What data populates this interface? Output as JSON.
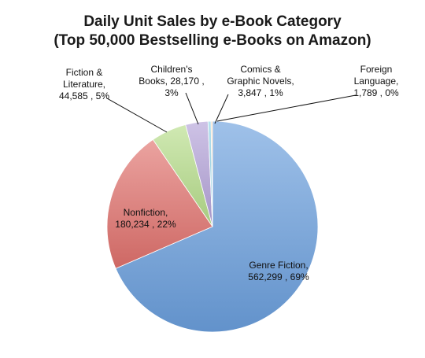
{
  "chart_data": {
    "type": "pie",
    "title": "Daily Unit Sales by e-Book Category",
    "subtitle": "(Top 50,000 Bestselling e-Books on Amazon)",
    "legend": "none",
    "slices": [
      {
        "name": "Genre Fiction",
        "value": 562299,
        "percent": "69%",
        "color": "#6b9fdd",
        "label_lines": [
          "Genre Fiction,",
          "562,299 , 69%"
        ]
      },
      {
        "name": "Nonfiction",
        "value": 180234,
        "percent": "22%",
        "color": "#e0716d",
        "label_lines": [
          "Nonfiction,",
          "180,234 , 22%"
        ]
      },
      {
        "name": "Fiction & Literature",
        "value": 44585,
        "percent": "5%",
        "color": "#b6dd8a",
        "label_lines": [
          "Fiction &",
          "Literature,",
          "44,585 , 5%"
        ]
      },
      {
        "name": "Children's Books",
        "value": 28170,
        "percent": "3%",
        "color": "#b3a2d8",
        "label_lines": [
          "Children's",
          "Books, 28,170 ,",
          "3%"
        ]
      },
      {
        "name": "Comics & Graphic Novels",
        "value": 3847,
        "percent": "1%",
        "color": "#8fd3e6",
        "label_lines": [
          "Comics &",
          "Graphic Novels,",
          "3,847 , 1%"
        ]
      },
      {
        "name": "Foreign Language",
        "value": 1789,
        "percent": "0%",
        "color": "#f3c08a",
        "label_lines": [
          "Foreign",
          "Language,",
          "1,789 , 0%"
        ]
      }
    ]
  }
}
